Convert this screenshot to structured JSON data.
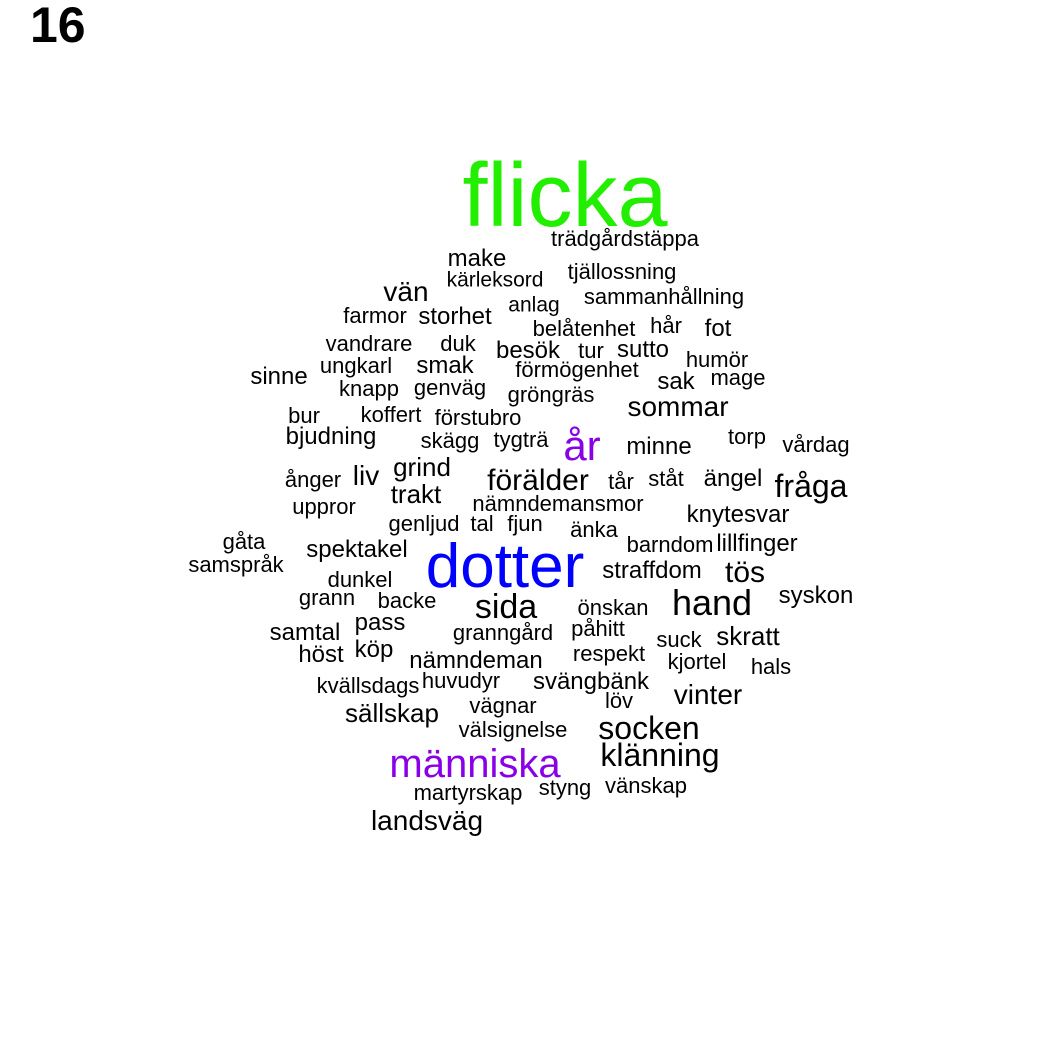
{
  "panel_number": "16",
  "colors": {
    "default": "#000000",
    "green": "#22ee00",
    "blue": "#0000ff",
    "purple": "#8a00e6"
  },
  "words": [
    {
      "text": "flicka",
      "color": "green"
    },
    {
      "text": "dotter",
      "color": "blue"
    },
    {
      "text": "år",
      "color": "purple"
    },
    {
      "text": "människa",
      "color": "purple"
    },
    {
      "text": "trädgårdstäppa"
    },
    {
      "text": "make"
    },
    {
      "text": "kärleksord"
    },
    {
      "text": "tjällossning"
    },
    {
      "text": "vän"
    },
    {
      "text": "anlag"
    },
    {
      "text": "sammanhållning"
    },
    {
      "text": "farmor"
    },
    {
      "text": "storhet"
    },
    {
      "text": "belåtenhet"
    },
    {
      "text": "hår"
    },
    {
      "text": "fot"
    },
    {
      "text": "vandrare"
    },
    {
      "text": "duk"
    },
    {
      "text": "besök"
    },
    {
      "text": "tur"
    },
    {
      "text": "sutto"
    },
    {
      "text": "humör"
    },
    {
      "text": "ungkarl"
    },
    {
      "text": "smak"
    },
    {
      "text": "förmögenhet"
    },
    {
      "text": "sinne"
    },
    {
      "text": "sak"
    },
    {
      "text": "mage"
    },
    {
      "text": "knapp"
    },
    {
      "text": "genväg"
    },
    {
      "text": "gröngräs"
    },
    {
      "text": "sommar"
    },
    {
      "text": "bur"
    },
    {
      "text": "koffert"
    },
    {
      "text": "förstubro"
    },
    {
      "text": "bjudning"
    },
    {
      "text": "skägg"
    },
    {
      "text": "tygträ"
    },
    {
      "text": "torp"
    },
    {
      "text": "minne"
    },
    {
      "text": "vårdag"
    },
    {
      "text": "grind"
    },
    {
      "text": "ånger"
    },
    {
      "text": "liv"
    },
    {
      "text": "förälder"
    },
    {
      "text": "tår"
    },
    {
      "text": "ståt"
    },
    {
      "text": "ängel"
    },
    {
      "text": "fråga"
    },
    {
      "text": "trakt"
    },
    {
      "text": "uppror"
    },
    {
      "text": "nämndemansmor"
    },
    {
      "text": "knytesvar"
    },
    {
      "text": "genljud"
    },
    {
      "text": "tal"
    },
    {
      "text": "fjun"
    },
    {
      "text": "änka"
    },
    {
      "text": "barndom"
    },
    {
      "text": "lillfinger"
    },
    {
      "text": "gåta"
    },
    {
      "text": "spektakel"
    },
    {
      "text": "samspråk"
    },
    {
      "text": "straffdom"
    },
    {
      "text": "tös"
    },
    {
      "text": "dunkel"
    },
    {
      "text": "grann"
    },
    {
      "text": "backe"
    },
    {
      "text": "sida"
    },
    {
      "text": "hand"
    },
    {
      "text": "syskon"
    },
    {
      "text": "önskan"
    },
    {
      "text": "pass"
    },
    {
      "text": "samtal"
    },
    {
      "text": "granngård"
    },
    {
      "text": "påhitt"
    },
    {
      "text": "suck"
    },
    {
      "text": "skratt"
    },
    {
      "text": "köp"
    },
    {
      "text": "höst"
    },
    {
      "text": "respekt"
    },
    {
      "text": "nämndeman"
    },
    {
      "text": "kjortel"
    },
    {
      "text": "hals"
    },
    {
      "text": "huvudyr"
    },
    {
      "text": "svängbänk"
    },
    {
      "text": "kvällsdags"
    },
    {
      "text": "vinter"
    },
    {
      "text": "vägnar"
    },
    {
      "text": "löv"
    },
    {
      "text": "sällskap"
    },
    {
      "text": "socken"
    },
    {
      "text": "välsignelse"
    },
    {
      "text": "klänning"
    },
    {
      "text": "martyrskap"
    },
    {
      "text": "styng"
    },
    {
      "text": "vänskap"
    },
    {
      "text": "landsväg"
    }
  ]
}
